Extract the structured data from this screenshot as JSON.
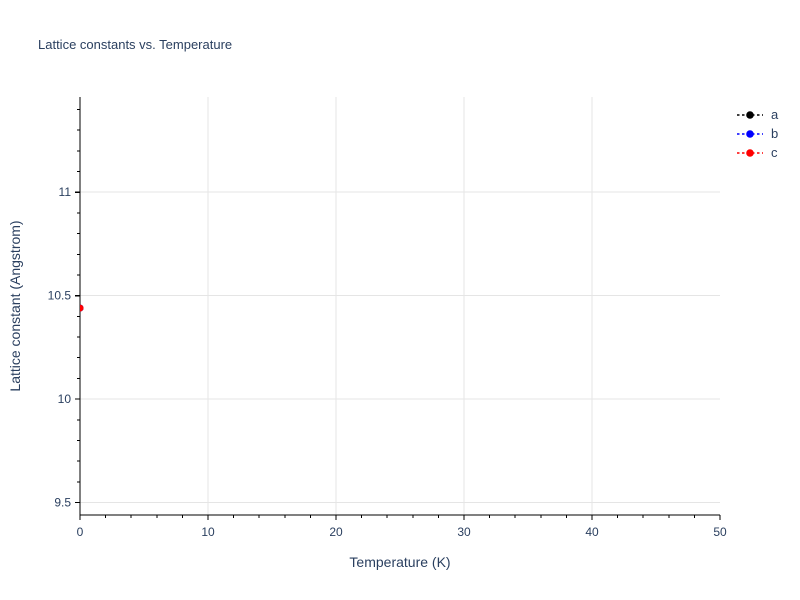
{
  "chart_data": {
    "type": "scatter",
    "title": "Lattice constants vs. Temperature",
    "xlabel": "Temperature (K)",
    "ylabel": "Lattice constant (Angstrom)",
    "xlim": [
      0,
      50
    ],
    "ylim": [
      9.44,
      11.46
    ],
    "xticks": [
      0,
      10,
      20,
      30,
      40,
      50
    ],
    "yticks": [
      9.5,
      10,
      10.5,
      11
    ],
    "x_minor_step": 2,
    "y_minor_step": 0.1,
    "grid": true,
    "mode": "lines+markers",
    "line_dash": "dot",
    "legend_position": "top-right-outside",
    "series": [
      {
        "name": "a",
        "color": "#000000",
        "x": [
          0
        ],
        "y": [
          10.44
        ]
      },
      {
        "name": "b",
        "color": "#0000ff",
        "x": [
          0
        ],
        "y": [
          10.44
        ]
      },
      {
        "name": "c",
        "color": "#ff0000",
        "x": [
          0
        ],
        "y": [
          10.44
        ]
      }
    ]
  },
  "colors": {
    "text": "#2a3f5f",
    "grid": "#e5e5e5",
    "axis": "#000000",
    "background": "#ffffff"
  }
}
